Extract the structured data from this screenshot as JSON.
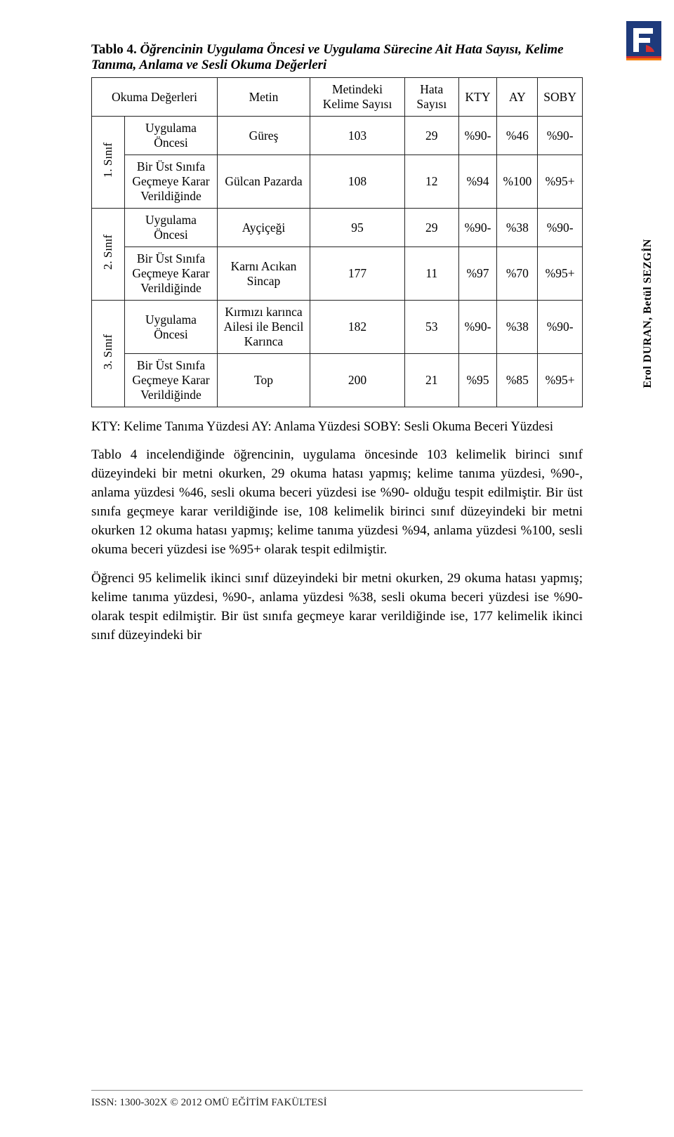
{
  "side_label": "Erol DURAN, Betül SEZGİN",
  "footer": "ISSN: 1300-302X © 2012 OMÜ EĞİTİM FAKÜLTESİ",
  "table": {
    "caption_label": "Tablo 4.",
    "caption_rest": " Öğrencinin Uygulama Öncesi ve Uygulama Sürecine Ait Hata Sayısı, Kelime Tanıma, Anlama ve Sesli Okuma Değerleri",
    "headers": {
      "c1": "Okuma Değerleri",
      "c2": "Metin",
      "c3": "Metindeki Kelime Sayısı",
      "c4": "Hata Sayısı",
      "c5": "KTY",
      "c6": "AY",
      "c7": "SOBY"
    },
    "groups": [
      {
        "grade": "1. Sınıf",
        "rows": [
          {
            "desc": "Uygulama Öncesi",
            "text": "Güreş",
            "words": "103",
            "errors": "29",
            "kty": "%90-",
            "ay": "%46",
            "soby": "%90-"
          },
          {
            "desc": "Bir Üst Sınıfa Geçmeye Karar Verildiğinde",
            "text": "Gülcan Pazarda",
            "words": "108",
            "errors": "12",
            "kty": "%94",
            "ay": "%100",
            "soby": "%95+"
          }
        ]
      },
      {
        "grade": "2. Sınıf",
        "rows": [
          {
            "desc": "Uygulama Öncesi",
            "text": "Ayçiçeği",
            "words": "95",
            "errors": "29",
            "kty": "%90-",
            "ay": "%38",
            "soby": "%90-"
          },
          {
            "desc": "Bir Üst Sınıfa Geçmeye Karar Verildiğinde",
            "text": "Karnı Acıkan Sincap",
            "words": "177",
            "errors": "11",
            "kty": "%97",
            "ay": "%70",
            "soby": "%95+"
          }
        ]
      },
      {
        "grade": "3. Sınıf",
        "rows": [
          {
            "desc": "Uygulama Öncesi",
            "text": "Kırmızı karınca Ailesi ile Bencil Karınca",
            "words": "182",
            "errors": "53",
            "kty": "%90-",
            "ay": "%38",
            "soby": "%90-"
          },
          {
            "desc": "Bir Üst Sınıfa Geçmeye Karar Verildiğinde",
            "text": "Top",
            "words": "200",
            "errors": "21",
            "kty": "%95",
            "ay": "%85",
            "soby": "%95+"
          }
        ]
      }
    ]
  },
  "note": "KTY: Kelime Tanıma Yüzdesi AY: Anlama Yüzdesi SOBY: Sesli Okuma Beceri Yüzdesi",
  "paragraph1": "Tablo 4 incelendiğinde öğrencinin, uygulama öncesinde 103 kelimelik birinci sınıf düzeyindeki bir metni okurken, 29 okuma hatası yapmış; kelime tanıma yüzdesi, %90-, anlama yüzdesi %46, sesli okuma beceri yüzdesi ise %90- olduğu tespit edilmiştir. Bir üst sınıfa geçmeye karar verildiğinde ise, 108 kelimelik birinci sınıf düzeyindeki bir metni okurken 12 okuma hatası yapmış; kelime tanıma yüzdesi %94, anlama yüzdesi %100, sesli okuma beceri yüzdesi ise %95+ olarak tespit edilmiştir.",
  "paragraph2": "Öğrenci 95 kelimelik ikinci sınıf düzeyindeki bir metni okurken, 29 okuma hatası yapmış; kelime tanıma yüzdesi, %90-, anlama yüzdesi %38, sesli okuma beceri yüzdesi ise %90- olarak tespit edilmiştir. Bir üst sınıfa geçmeye karar verildiğinde ise, 177 kelimelik ikinci sınıf düzeyindeki bir",
  "logo_colors": {
    "blue": "#1e3a7b",
    "red": "#d32f2f",
    "orange": "#f57c00"
  }
}
